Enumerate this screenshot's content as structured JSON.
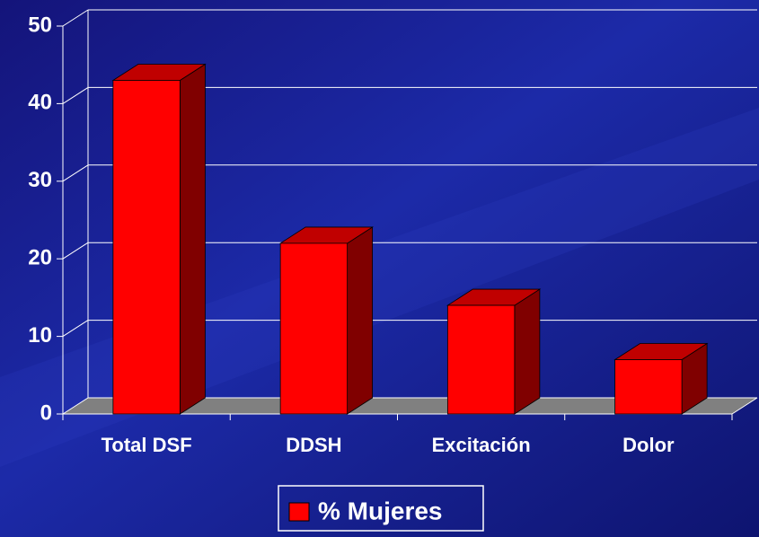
{
  "chart_data": {
    "type": "bar3d",
    "categories": [
      "Total DSF",
      "DDSH",
      "Excitación",
      "Dolor"
    ],
    "series": [
      {
        "name": "% Mujeres",
        "color": "#ff0000",
        "values": [
          43,
          22,
          14,
          7
        ]
      }
    ],
    "ylim": [
      0,
      50
    ],
    "yticks": [
      0,
      10,
      20,
      30,
      40,
      50
    ],
    "grid": true,
    "legend": "bottom"
  }
}
